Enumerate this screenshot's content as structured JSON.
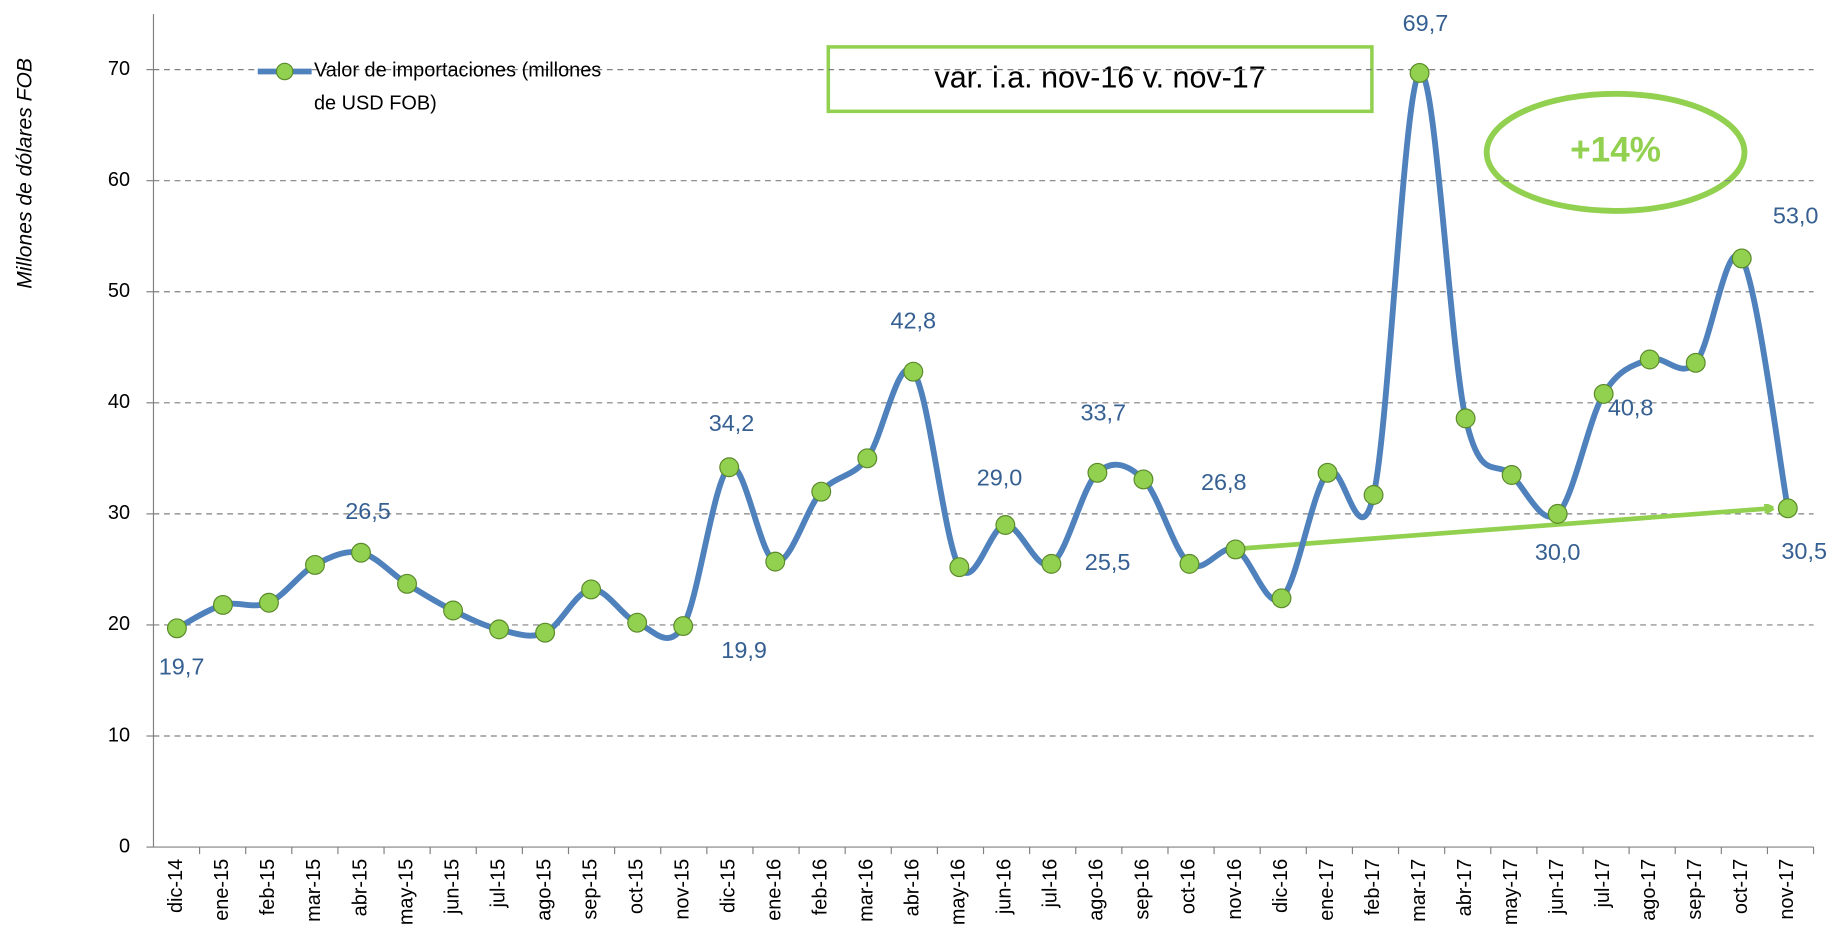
{
  "chart_data": {
    "type": "line",
    "y_label": "Millones de dólares FOB",
    "categories": [
      "dic-14",
      "ene-15",
      "feb-15",
      "mar-15",
      "abr-15",
      "may-15",
      "jun-15",
      "jul-15",
      "ago-15",
      "sep-15",
      "oct-15",
      "nov-15",
      "dic-15",
      "ene-16",
      "feb-16",
      "mar-16",
      "abr-16",
      "may-16",
      "jun-16",
      "jul-16",
      "ago-16",
      "sep-16",
      "oct-16",
      "nov-16",
      "dic-16",
      "ene-17",
      "feb-17",
      "mar-17",
      "abr-17",
      "may-17",
      "jun-17",
      "jul-17",
      "ago-17",
      "sep-17",
      "oct-17",
      "nov-17"
    ],
    "series": [
      {
        "name": "Valor de importaciones  (millones de USD FOB)",
        "color": "#4f81bd",
        "marker_color": "#92d050",
        "values": [
          19.7,
          21.8,
          22.0,
          25.4,
          26.5,
          23.7,
          21.3,
          19.6,
          19.3,
          23.2,
          20.2,
          19.9,
          34.2,
          25.7,
          32.0,
          35.0,
          42.8,
          25.2,
          29.0,
          25.5,
          33.7,
          33.1,
          25.5,
          26.8,
          22.4,
          33.7,
          31.7,
          69.7,
          38.6,
          33.5,
          30.0,
          40.8,
          43.9,
          43.6,
          53.0,
          30.5
        ],
        "value_labels": [
          "19,7",
          null,
          null,
          null,
          "26,5",
          null,
          null,
          null,
          null,
          null,
          null,
          "19,9",
          "34,2",
          null,
          null,
          null,
          "42,8",
          null,
          "29,0",
          "25,5",
          "33,7",
          null,
          null,
          "26,8",
          null,
          null,
          null,
          "69,7",
          null,
          null,
          "30,0",
          "40,8",
          null,
          null,
          "53,0",
          "30,5"
        ]
      }
    ],
    "ylim": [
      0,
      75
    ],
    "yticks": [
      0,
      10,
      20,
      30,
      40,
      50,
      60,
      70
    ],
    "grid": true,
    "annotations": {
      "box": "var. i.a. nov-16 v. nov-17",
      "change": "+14%"
    }
  }
}
